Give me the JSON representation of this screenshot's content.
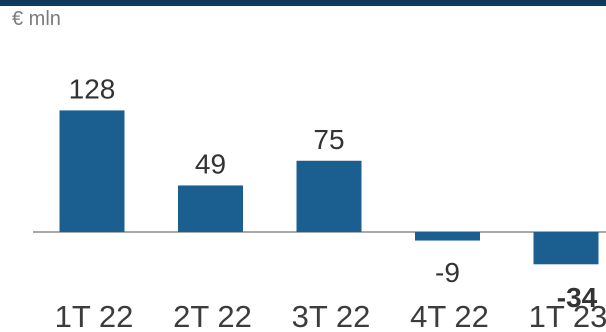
{
  "unit_label": "€ mln",
  "colors": {
    "bar": "#1b5f91",
    "axis": "#8c8c8c",
    "band": "#0d3b5e"
  },
  "chart_data": {
    "type": "bar",
    "categories": [
      "1T 22",
      "2T 22",
      "3T 22",
      "4T 22",
      "1T 23"
    ],
    "values": [
      128,
      49,
      75,
      -9,
      -34
    ],
    "data_labels": [
      "128",
      "49",
      "75",
      "-9",
      "-34"
    ],
    "highlight_label_index": 4,
    "title": "",
    "xlabel": "",
    "ylabel": "€ mln",
    "grid": false,
    "ylim": [
      -40,
      140
    ]
  }
}
